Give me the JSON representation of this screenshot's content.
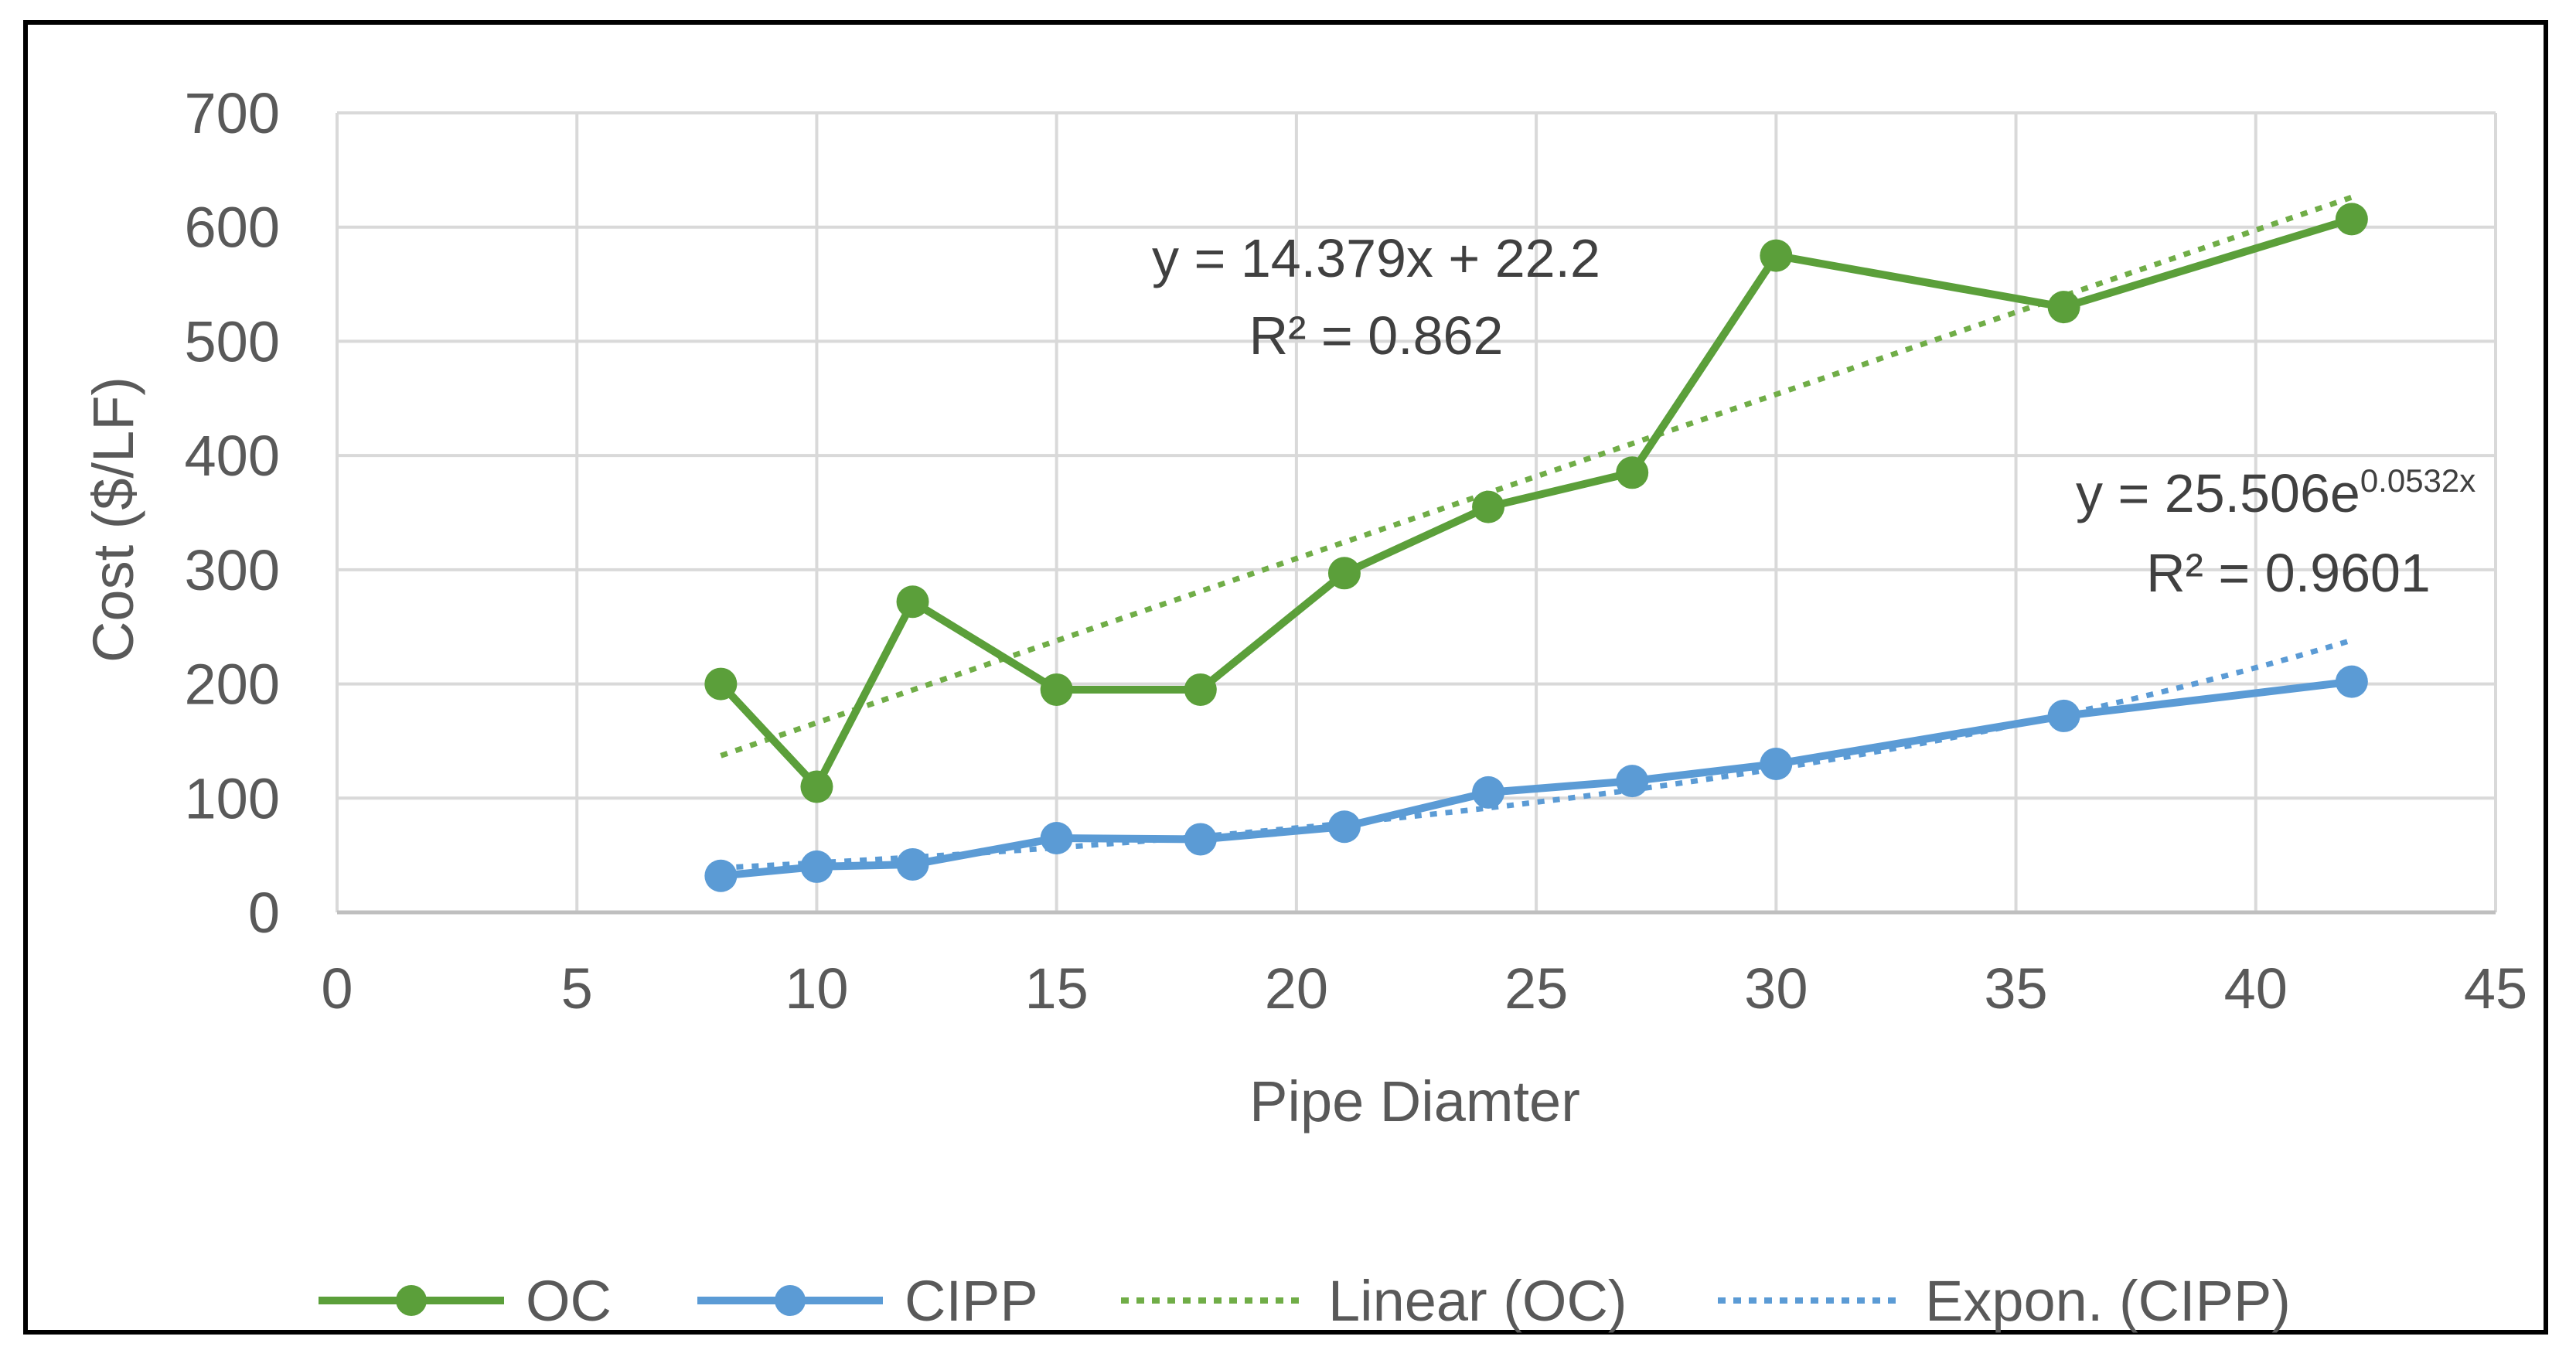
{
  "chart_data": {
    "type": "line",
    "xlabel": "Pipe Diamter",
    "ylabel": "Cost ($/LF)",
    "xlim": [
      0,
      45
    ],
    "ylim": [
      0,
      700
    ],
    "x_ticks": [
      "0",
      "5",
      "10",
      "15",
      "20",
      "25",
      "30",
      "35",
      "40",
      "45"
    ],
    "y_ticks": [
      "0",
      "100",
      "200",
      "300",
      "400",
      "500",
      "600",
      "700"
    ],
    "grid": true,
    "legend_position": "bottom",
    "x": [
      8,
      10,
      12,
      15,
      18,
      21,
      24,
      27,
      30,
      36,
      42
    ],
    "series": [
      {
        "name": "OC",
        "color": "#5b9f3a",
        "style": "solid-marker",
        "values": [
          200,
          110,
          272,
          195,
          195,
          297,
          355,
          385,
          575,
          530,
          607
        ]
      },
      {
        "name": "CIPP",
        "color": "#5b9bd5",
        "style": "solid-marker",
        "values": [
          32,
          40,
          42,
          65,
          64,
          75,
          105,
          115,
          130,
          172,
          202
        ]
      }
    ],
    "trendlines": [
      {
        "name": "Linear (OC)",
        "color": "#70ad47",
        "type": "linear",
        "slope": 14.379,
        "intercept": 22.2,
        "x_range": [
          8,
          42
        ],
        "equation": "y = 14.379x + 22.2",
        "r2": "R² = 0.862"
      },
      {
        "name": "Expon. (CIPP)",
        "color": "#5b9bd5",
        "type": "exponential",
        "a": 25.506,
        "b": 0.0532,
        "x_range": [
          8,
          42
        ],
        "equation_base": "y = 25.506e",
        "equation_exp": "0.0532x",
        "r2": "R² = 0.9601"
      }
    ]
  }
}
